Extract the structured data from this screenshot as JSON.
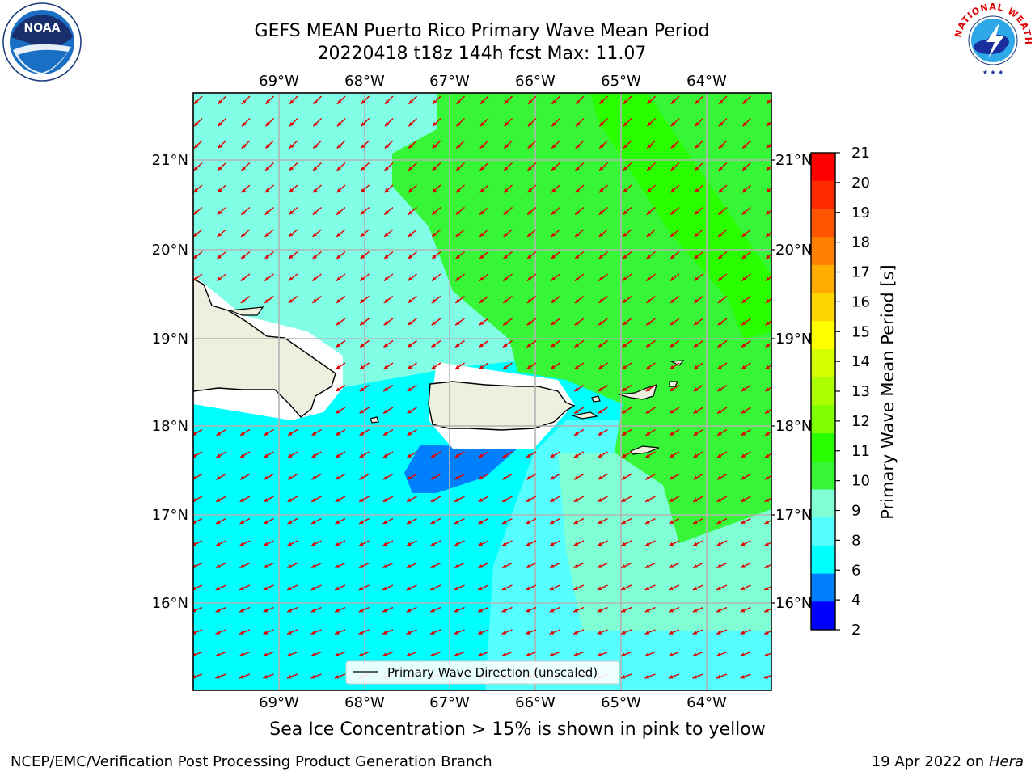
{
  "title": {
    "line1": "GEFS MEAN Puerto Rico Primary Wave Mean Period",
    "line2": "20220418 t18z 144h fcst   Max: 11.07"
  },
  "map": {
    "lon_labels": [
      "69°W",
      "68°W",
      "67°W",
      "66°W",
      "65°W",
      "64°W"
    ],
    "lat_labels": [
      "21°N",
      "20°N",
      "19°N",
      "18°N",
      "17°N",
      "16°N"
    ],
    "legend_label": "Primary Wave Direction (unscaled)",
    "arrow_color": "#e00000"
  },
  "colorbar": {
    "label": "Primary Wave Mean Period [s]",
    "ticks": [
      "21",
      "20",
      "19",
      "18",
      "17",
      "16",
      "15",
      "14",
      "13",
      "12",
      "11",
      "10",
      "9",
      "8",
      "6",
      "4",
      "2"
    ],
    "colors": [
      "#ff0000",
      "#ff2a00",
      "#ff5500",
      "#ff8000",
      "#ffab00",
      "#ffd500",
      "#ffff00",
      "#d5ff00",
      "#aaff00",
      "#80ff00",
      "#2aff00",
      "#37f537",
      "#80ffd5",
      "#55ffff",
      "#00ffff",
      "#0080ff",
      "#0000ff"
    ]
  },
  "logos": {
    "noaa_text": "NOAA",
    "nws_text": "NATIONAL WEATHER SERVICE"
  },
  "footer": {
    "caption": "Sea Ice Concentration > 15% is shown in pink to yellow",
    "left": "NCEP/EMC/Verification Post Processing Product Generation Branch",
    "right_prefix": "19 Apr 2022 on ",
    "right_host": "Hera"
  }
}
